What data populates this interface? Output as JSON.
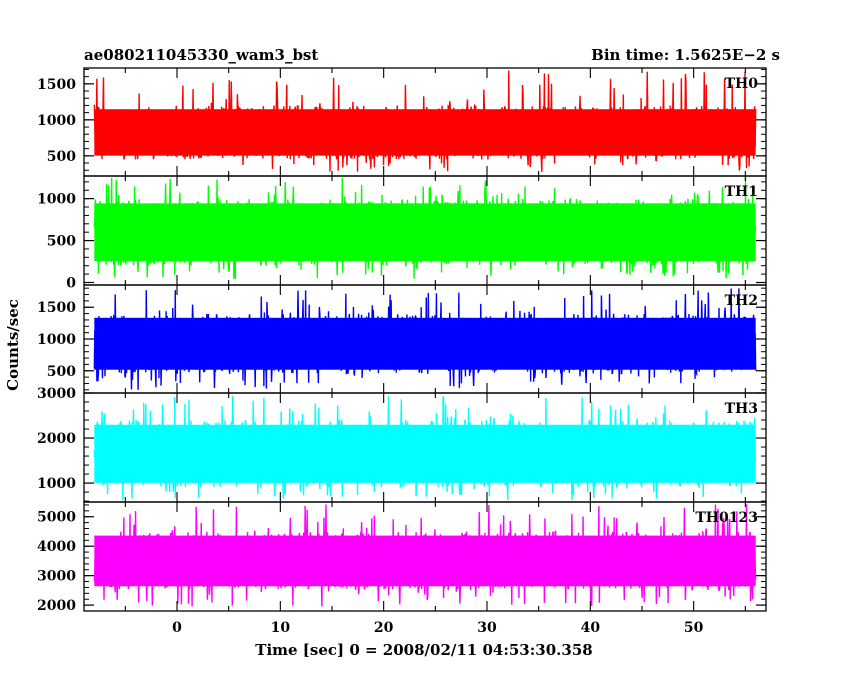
{
  "chart_data": {
    "type": "line",
    "title_left": "ae080211045330_wam3_bst",
    "title_right": "Bin time: 1.5625E−2 s",
    "xlabel": "Time [sec] 0 = 2008/02/11 04:53:30.358",
    "ylabel": "Counts/sec",
    "xlim": [
      -9,
      57
    ],
    "x_data_range": [
      -8,
      56
    ],
    "xticks": [
      0,
      10,
      20,
      30,
      40,
      50
    ],
    "x_tick_labels": [
      "0",
      "10",
      "20",
      "30",
      "40",
      "50"
    ],
    "grid": false,
    "panels": [
      {
        "name": "TH0",
        "color": "#ff0000",
        "ylim": [
          220,
          1720
        ],
        "yticks": [
          500,
          1000,
          1500
        ],
        "y_tick_labels": [
          "500",
          "1000",
          "1500"
        ],
        "typical_low": 450,
        "typical_high": 1200,
        "min": 270,
        "max": 1700
      },
      {
        "name": "TH1",
        "color": "#00ff00",
        "ylim": [
          -30,
          1270
        ],
        "yticks": [
          0,
          500,
          1000
        ],
        "y_tick_labels": [
          "0",
          "500",
          "1000"
        ],
        "typical_low": 200,
        "typical_high": 1000,
        "min": 40,
        "max": 1260
      },
      {
        "name": "TH2",
        "color": "#0000ff",
        "ylim": [
          150,
          1850
        ],
        "yticks": [
          500,
          1000,
          1500
        ],
        "y_tick_labels": [
          "500",
          "1000",
          "1500"
        ],
        "typical_low": 450,
        "typical_high": 1400,
        "min": 200,
        "max": 1800
      },
      {
        "name": "TH3",
        "color": "#00ffff",
        "ylim": [
          580,
          3000
        ],
        "yticks": [
          1000,
          2000,
          3000
        ],
        "y_tick_labels": [
          "1000",
          "2000",
          "3000"
        ],
        "typical_low": 900,
        "typical_high": 2400,
        "min": 620,
        "max": 2950
      },
      {
        "name": "TH0123",
        "color": "#ff00ff",
        "ylim": [
          1800,
          5500
        ],
        "yticks": [
          2000,
          3000,
          4000,
          5000
        ],
        "y_tick_labels": [
          "2000",
          "3000",
          "4000",
          "5000"
        ],
        "typical_low": 2500,
        "typical_high": 4500,
        "min": 1950,
        "max": 5450
      }
    ]
  }
}
